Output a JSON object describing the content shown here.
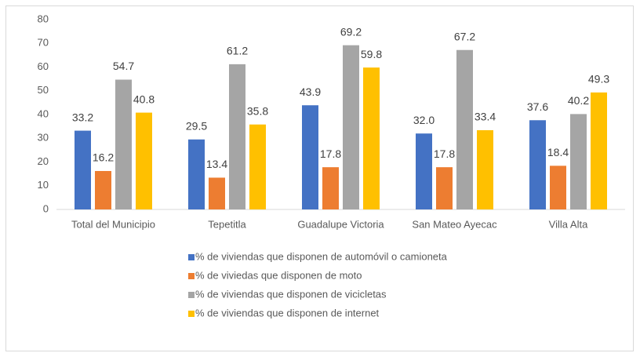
{
  "chart_data": {
    "type": "bar",
    "categories": [
      "Total del Municipio",
      "Tepetitla",
      "Guadalupe Victoria",
      "San Mateo Ayecac",
      "Villa Alta"
    ],
    "series": [
      {
        "name": "% de viviendas que disponen de automóvil o camioneta",
        "color": "#4472c4",
        "values": [
          33.2,
          29.5,
          43.9,
          32,
          37.6
        ],
        "value_labels": [
          "33.2",
          "29.5",
          "43.9",
          "32.0",
          "37.6"
        ]
      },
      {
        "name": "% de viviedas que disponen de moto",
        "color": "#ed7d31",
        "values": [
          16.2,
          13.4,
          17.8,
          17.8,
          18.4
        ],
        "value_labels": [
          "16.2",
          "13.4",
          "17.8",
          "17.8",
          "18.4"
        ]
      },
      {
        "name": "% de viviendas que disponen de vicicletas",
        "color": "#a5a5a5",
        "values": [
          54.7,
          61.2,
          69.2,
          67.2,
          40.2
        ],
        "value_labels": [
          "54.7",
          "61.2",
          "69.2",
          "67.2",
          "40.2"
        ]
      },
      {
        "name": "% de viviendas que disponen de internet",
        "color": "#ffc000",
        "values": [
          40.8,
          35.8,
          59.8,
          33.4,
          49.3
        ],
        "value_labels": [
          "40.8",
          "35.8",
          "59.8",
          "33.4",
          "49.3"
        ]
      }
    ],
    "ylim": [
      0,
      80
    ],
    "yticks": [
      0,
      10,
      20,
      30,
      40,
      50,
      60,
      70,
      80
    ],
    "grid": false,
    "legend": "bottom"
  }
}
